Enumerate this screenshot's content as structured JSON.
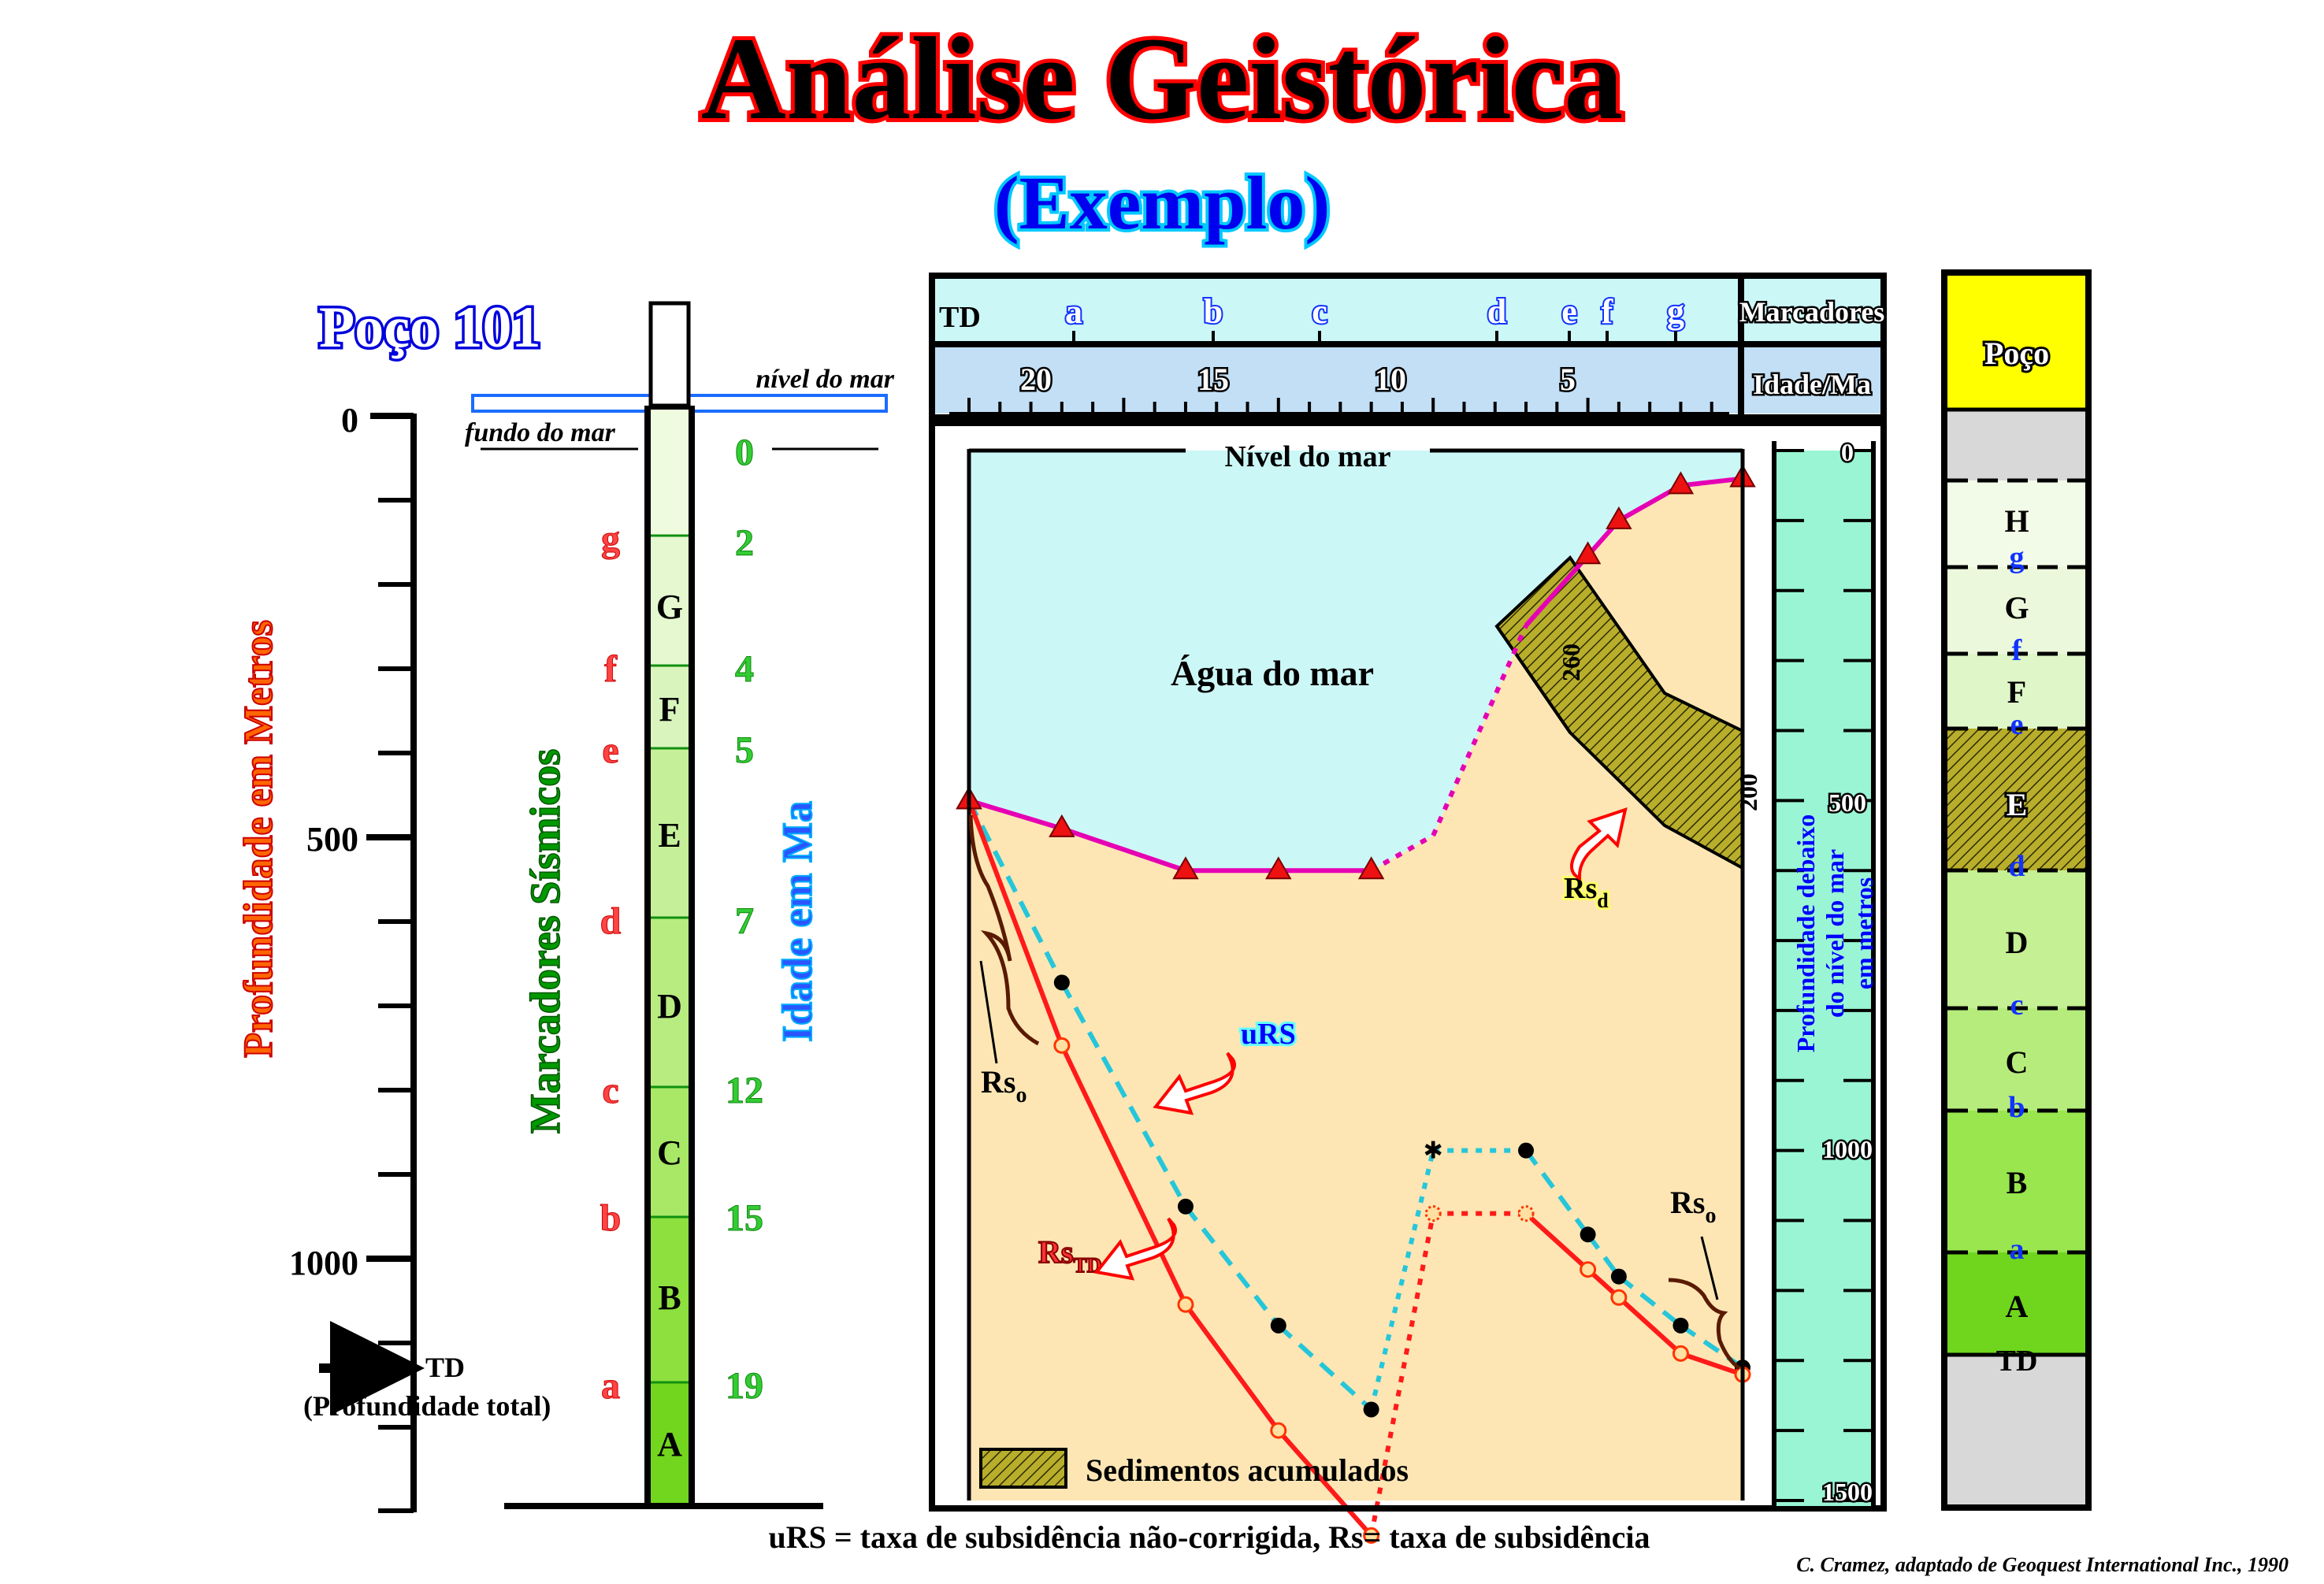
{
  "header": {
    "title": "Análise Geistórica",
    "subtitle": "(Exemplo)"
  },
  "well": {
    "name": "Poço 101",
    "depth_axis_label": "Profundidade em Metros",
    "depth_ticks": [
      "0",
      "500",
      "1000"
    ],
    "sea_level_label": "nível do mar",
    "sea_floor_label": "fundo do mar",
    "td_label": "TD",
    "td_caption": "(Profundidade total)",
    "markers_axis_label": "Marcadores Sísmicos",
    "age_axis_label": "Idade em Ma",
    "formations": [
      "G",
      "F",
      "E",
      "D",
      "C",
      "B",
      "A"
    ],
    "markers": [
      "g",
      "f",
      "e",
      "d",
      "c",
      "b",
      "a"
    ],
    "marker_ages": [
      "0",
      "2",
      "4",
      "5",
      "7",
      "12",
      "15",
      "19"
    ]
  },
  "plot": {
    "top_labels": [
      "TD",
      "a",
      "b",
      "c",
      "d",
      "e",
      "f",
      "g"
    ],
    "markers_header": "Marcadores",
    "age_header": "Idade/Ma",
    "age_ticks": [
      "20",
      "15",
      "10",
      "5"
    ],
    "sea_level": "Nível do mar",
    "seawater": "Água do mar",
    "legend": "Sedimentos acumulados",
    "label_urs": "uRS",
    "label_rs_main": "Rs",
    "label_rs_td_sub": "TD",
    "label_rs_o_sub": "o",
    "label_rs_d_sub": "d",
    "thickness_260": "260",
    "thickness_200": "200",
    "right_axis_label_lines": [
      "Profundidade debaixo",
      "do nível do mar",
      "em metros"
    ],
    "right_axis_ticks": [
      "0",
      "500",
      "1000",
      "1500"
    ]
  },
  "column": {
    "header": "Poço",
    "units": [
      "H",
      "G",
      "F",
      "E",
      "D",
      "C",
      "B",
      "A"
    ],
    "markers": [
      "g",
      "f",
      "e",
      "d",
      "c",
      "b",
      "a"
    ],
    "td": "TD"
  },
  "footer": {
    "caption": "uRS = taxa de subsidência não-corrigida, Rs= taxa de subsidência",
    "credit": "C. Cramez, adaptado de Geoquest International Inc., 1990"
  },
  "chart_data": {
    "type": "line",
    "title": "",
    "xlabel": "Idade/Ma",
    "ylabel": "Profundidade debaixo do nível do mar em metros",
    "xlim": [
      25,
      0
    ],
    "ylim": [
      1500,
      0
    ],
    "series": [
      {
        "name": "Nível do mar",
        "x": [
          25,
          22,
          18,
          15,
          12,
          10,
          7,
          5,
          4,
          2,
          0
        ],
        "y": [
          0,
          0,
          0,
          0,
          0,
          0,
          0,
          0,
          0,
          0,
          0
        ]
      },
      {
        "name": "fundo do mar",
        "x": [
          25,
          22,
          18,
          15,
          12,
          10,
          7,
          5,
          4,
          2,
          0
        ],
        "y": [
          500,
          540,
          600,
          600,
          600,
          550,
          250,
          150,
          100,
          50,
          40
        ]
      },
      {
        "name": "uRS",
        "x": [
          25,
          22,
          18,
          15,
          12,
          10,
          7,
          5,
          4,
          2,
          0
        ],
        "y": [
          500,
          760,
          1080,
          1250,
          1370,
          1000,
          1000,
          1120,
          1180,
          1250,
          1310
        ]
      },
      {
        "name": "Rs",
        "x": [
          25,
          22,
          18,
          15,
          12,
          10,
          7,
          5,
          4,
          2,
          0
        ],
        "y": [
          500,
          850,
          1220,
          1400,
          1550,
          1090,
          1090,
          1170,
          1210,
          1290,
          1320
        ]
      }
    ],
    "colors": {
      "sea_floor": "#e600b4",
      "uRS": "#26c6da",
      "Rs": "#ff1a1a",
      "seawater": "#ccf7f7",
      "sediment": "#fde6b4"
    }
  }
}
